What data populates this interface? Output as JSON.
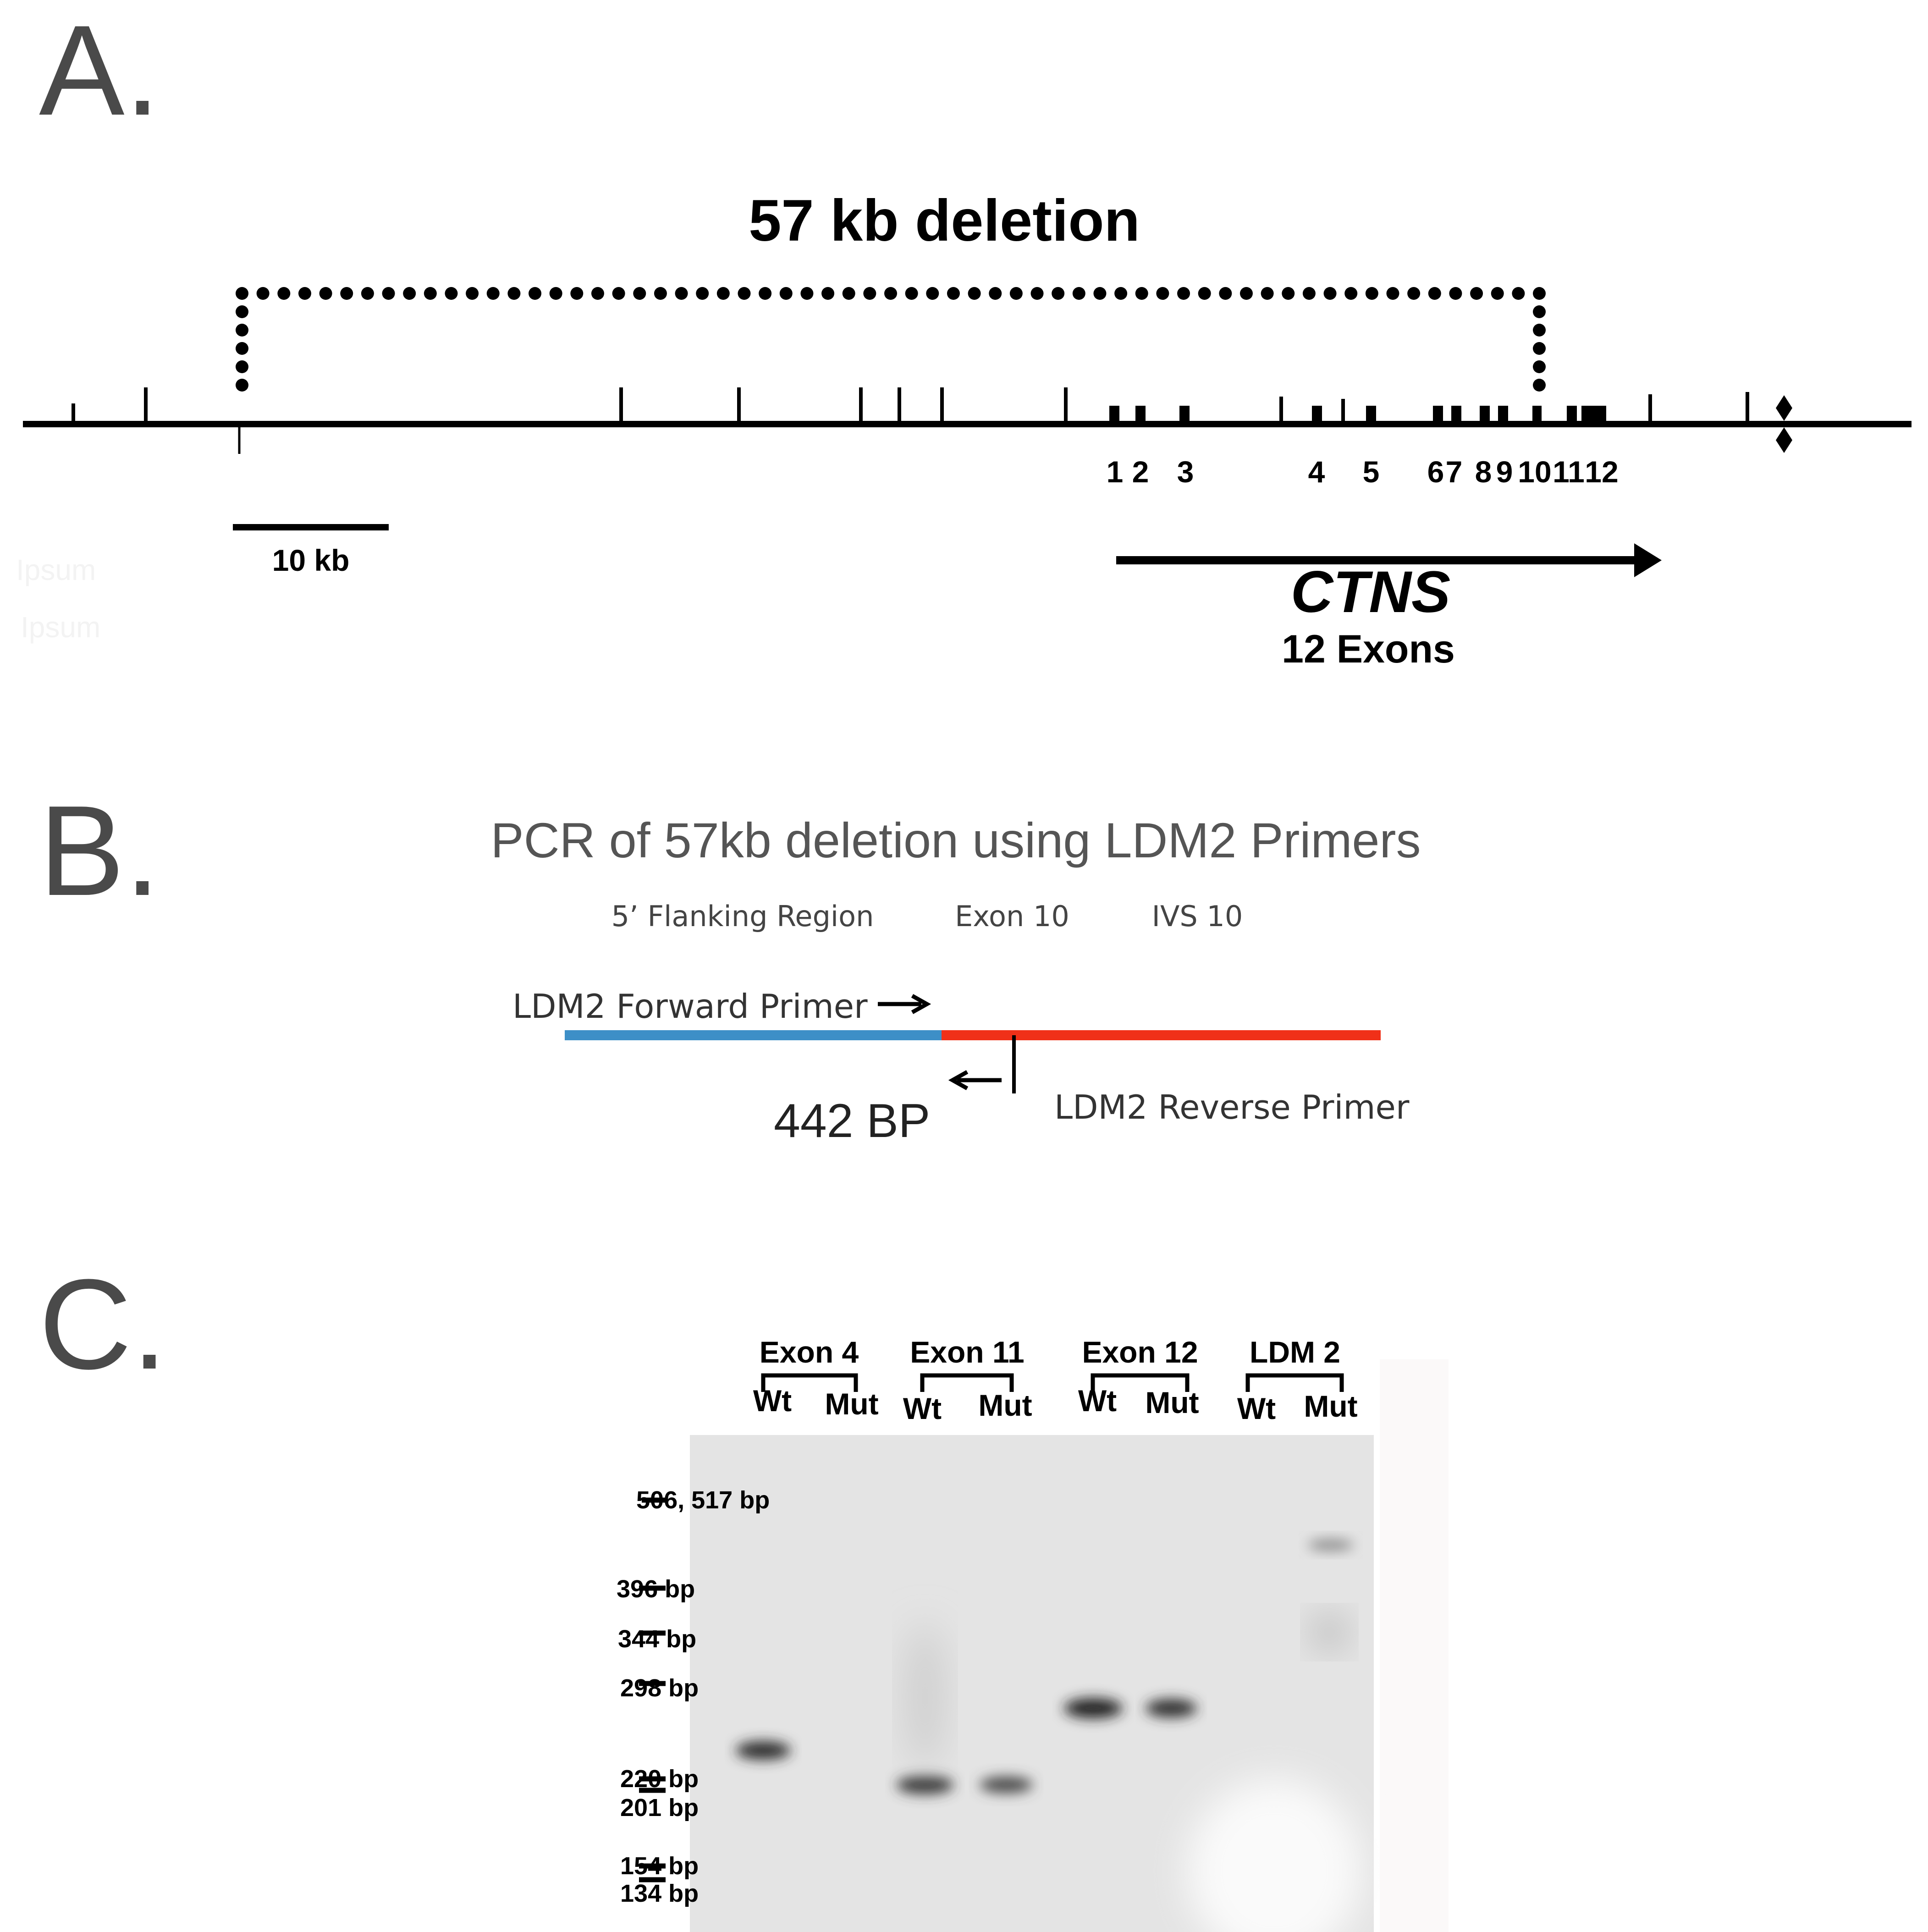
{
  "panel_a": {
    "letter": "A.",
    "deletion_label": "57 kb deletion",
    "exon_numbers": [
      "1",
      "2",
      "3",
      "4",
      "5",
      "6",
      "7",
      "8",
      "9",
      "10",
      "11",
      "12"
    ],
    "scale_label": "10 kb",
    "gene_name": "CTNS",
    "gene_exons": "12 Exons",
    "faint_texts": [
      "Ipsum",
      "Ipsum"
    ]
  },
  "panel_b": {
    "letter": "B.",
    "title": "PCR of 57kb deletion using LDM2 Primers",
    "region_labels": [
      "5’ Flanking Region",
      "Exon 10",
      "IVS 10"
    ],
    "forward_primer": "LDM2 Forward Primer",
    "reverse_primer": "LDM2 Reverse Primer",
    "product_size": "442 BP",
    "colors": {
      "flanking": "#3d8fc7",
      "exon_ivs": "#f03018"
    }
  },
  "panel_c": {
    "letter": "C.",
    "groups": [
      {
        "name": "Exon 4",
        "lanes": [
          "Wt",
          "Mut"
        ]
      },
      {
        "name": "Exon 11",
        "lanes": [
          "Wt",
          "Mut"
        ]
      },
      {
        "name": "Exon 12",
        "lanes": [
          "Wt",
          "Mut"
        ]
      },
      {
        "name": "LDM 2",
        "lanes": [
          "Wt",
          "Mut"
        ]
      }
    ],
    "ladder": [
      "506, 517 bp",
      "396 bp",
      "344 bp",
      "298 bp",
      "220 bp",
      "201 bp",
      "154 bp",
      "134 bp"
    ]
  }
}
